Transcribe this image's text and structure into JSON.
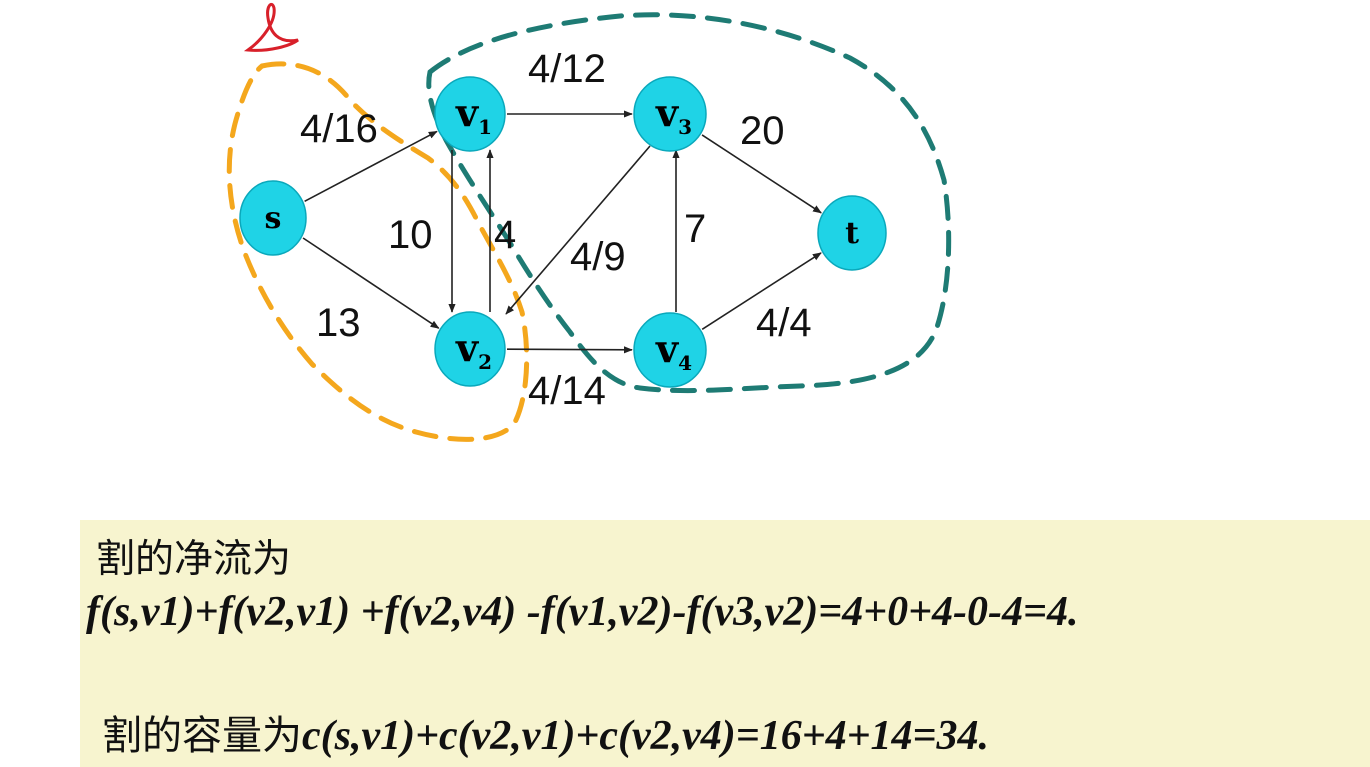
{
  "graph": {
    "nodes": [
      {
        "id": "s",
        "label": "s",
        "sub": ""
      },
      {
        "id": "v1",
        "label": "v",
        "sub": "1"
      },
      {
        "id": "v2",
        "label": "v",
        "sub": "2"
      },
      {
        "id": "v3",
        "label": "v",
        "sub": "3"
      },
      {
        "id": "v4",
        "label": "v",
        "sub": "4"
      },
      {
        "id": "t",
        "label": "t",
        "sub": ""
      }
    ],
    "edges": [
      {
        "from": "s",
        "to": "v1",
        "label": "4/16"
      },
      {
        "from": "s",
        "to": "v2",
        "label": "13"
      },
      {
        "from": "v1",
        "to": "v3",
        "label": "4/12"
      },
      {
        "from": "v1",
        "to": "v2",
        "label": "10"
      },
      {
        "from": "v2",
        "to": "v1",
        "label": "4"
      },
      {
        "from": "v3",
        "to": "v2",
        "label": "4/9"
      },
      {
        "from": "v2",
        "to": "v4",
        "label": "4/14"
      },
      {
        "from": "v4",
        "to": "v3",
        "label": "7"
      },
      {
        "from": "v3",
        "to": "t",
        "label": "20"
      },
      {
        "from": "v4",
        "to": "t",
        "label": "4/4"
      }
    ],
    "colors": {
      "node_fill": "#1fd3e6",
      "node_stroke": "#0aa8bb",
      "edge": "#222222",
      "source_side_cut": "#f4a71d",
      "sink_side_cut": "#1e7b74",
      "annotation": "#d8202a"
    }
  },
  "text_box": {
    "background": "#f7f4cf",
    "net_flow_heading": "割的净流为",
    "net_flow_formula": "f(s,v1)+f(v2,v1) +f(v2,v4) -f(v1,v2)-f(v3,v2)=4+0+4-0-4=4.",
    "capacity_heading": "割的容量为",
    "capacity_formula": "c(s,v1)+c(v2,v1)+c(v2,v4)=16+4+14=34."
  }
}
